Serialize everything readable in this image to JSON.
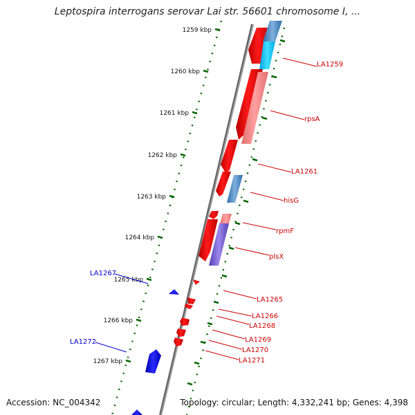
{
  "title": "Leptospira interrogans serovar Lai str. 56601 chromosome I, ...",
  "footer": {
    "accession": "Accession: NC_004342",
    "summary": "Topology: circular; Length: 4,332,241 bp; Genes: 4,398"
  },
  "kbp_ticks": [
    "1259 kbp",
    "1260 kbp",
    "1261 kbp",
    "1262 kbp",
    "1263 kbp",
    "1264 kbp",
    "1265 kbp",
    "1266 kbp",
    "1267 kbp"
  ],
  "gene_labels_right": [
    "LA1259",
    "rpsA",
    "LA1261",
    "hisG",
    "rpmF",
    "plsX",
    "LA1265",
    "LA1266",
    "LA1268",
    "LA1269",
    "LA1270",
    "LA1271"
  ],
  "gene_labels_left": [
    "LA1267",
    "LA1272"
  ],
  "colors": {
    "forward_gene": "#ff0000",
    "reverse_gene": "#0000ff",
    "label_right": "#cc0000",
    "label_left": "#0000cc",
    "tick_mark": "#006600",
    "backbone": "#777777"
  }
}
